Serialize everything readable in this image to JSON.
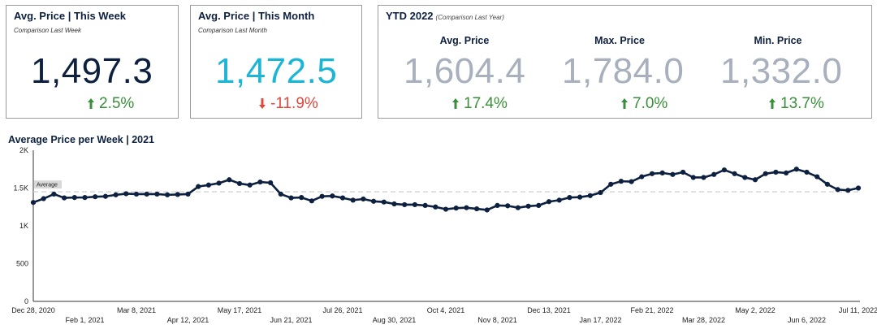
{
  "colors": {
    "navy": "#0d2040",
    "cyan": "#1bb6d6",
    "gray_value": "#a8b0bd",
    "up_green": "#3a8f3a",
    "down_red": "#e0483c",
    "line": "#0d2040"
  },
  "cards": {
    "week": {
      "title": "Avg. Price | This Week",
      "subtitle": "Comparison Last Week",
      "value": "1,497.3",
      "change": "2.5%",
      "direction": "up-arrow-icon"
    },
    "month": {
      "title": "Avg. Price | This Month",
      "subtitle": "Comparison Last Month",
      "value": "1,472.5",
      "change": "-11.9%",
      "direction": "down-arrow-icon"
    },
    "ytd": {
      "title": "YTD 2022",
      "subtitle": "(Comparison Last Year)",
      "cols": [
        {
          "label": "Avg. Price",
          "value": "1,604.4",
          "change": "17.4%",
          "direction": "up-arrow-icon"
        },
        {
          "label": "Max. Price",
          "value": "1,784.0",
          "change": "7.0%",
          "direction": "up-arrow-icon"
        },
        {
          "label": "Min. Price",
          "value": "1,332.0",
          "change": "13.7%",
          "direction": "up-arrow-icon"
        }
      ]
    }
  },
  "chart_data": {
    "type": "line",
    "title": "Average Price per Week | 2021",
    "xlabel": "",
    "ylabel": "",
    "ylim": [
      0,
      2000
    ],
    "y_ticks": [
      "0",
      "500",
      "1K",
      "1.5K",
      "2K"
    ],
    "y_tick_values": [
      0,
      500,
      1000,
      1500,
      2000
    ],
    "x_ticks": [
      "Dec 28, 2020",
      "Feb 1, 2021",
      "Mar 8, 2021",
      "Apr 12, 2021",
      "May 17, 2021",
      "Jun 21, 2021",
      "Jul 26, 2021",
      "Aug 30, 2021",
      "Oct 4, 2021",
      "Nov 8, 2021",
      "Dec 13, 2021",
      "Jan 17, 2022",
      "Feb 21, 2022",
      "Mar 28, 2022",
      "May 2, 2022",
      "Jun 6, 2022",
      "Jul 11, 2022"
    ],
    "average_label": "Average",
    "average_value": 1450,
    "grid": false,
    "series": [
      {
        "values": [
          1310,
          1360,
          1420,
          1370,
          1375,
          1375,
          1385,
          1390,
          1410,
          1425,
          1420,
          1420,
          1420,
          1410,
          1415,
          1420,
          1520,
          1540,
          1565,
          1610,
          1560,
          1540,
          1580,
          1570,
          1420,
          1370,
          1375,
          1330,
          1390,
          1395,
          1370,
          1340,
          1355,
          1325,
          1315,
          1290,
          1280,
          1280,
          1270,
          1250,
          1220,
          1235,
          1240,
          1225,
          1210,
          1270,
          1265,
          1240,
          1260,
          1270,
          1320,
          1340,
          1375,
          1380,
          1400,
          1440,
          1550,
          1590,
          1585,
          1650,
          1690,
          1700,
          1680,
          1710,
          1640,
          1640,
          1680,
          1740,
          1690,
          1640,
          1610,
          1690,
          1710,
          1700,
          1750,
          1710,
          1650,
          1550,
          1480,
          1470,
          1500
        ]
      }
    ]
  }
}
